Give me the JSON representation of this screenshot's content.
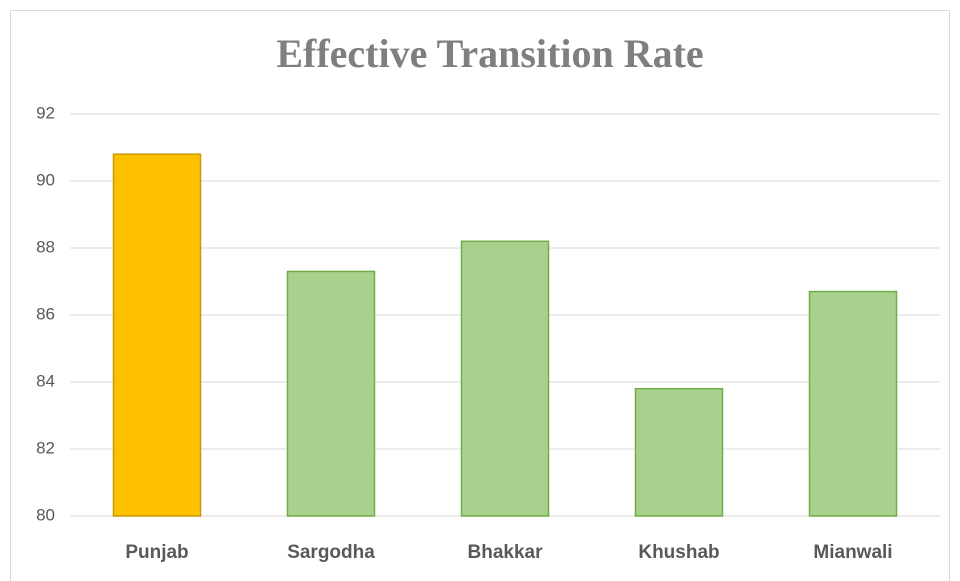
{
  "chart_data": {
    "type": "bar",
    "title": "Effective Transition Rate",
    "categories": [
      "Punjab",
      "Sargodha",
      "Bhakkar",
      "Khushab",
      "Mianwali"
    ],
    "values": [
      90.8,
      87.3,
      88.2,
      83.8,
      86.7
    ],
    "colors": [
      "#ffc000",
      "#a9d18e",
      "#a9d18e",
      "#a9d18e",
      "#a9d18e"
    ],
    "ylim": [
      80,
      92
    ],
    "yticks": [
      80,
      82,
      84,
      86,
      88,
      90,
      92
    ],
    "grid": true
  }
}
